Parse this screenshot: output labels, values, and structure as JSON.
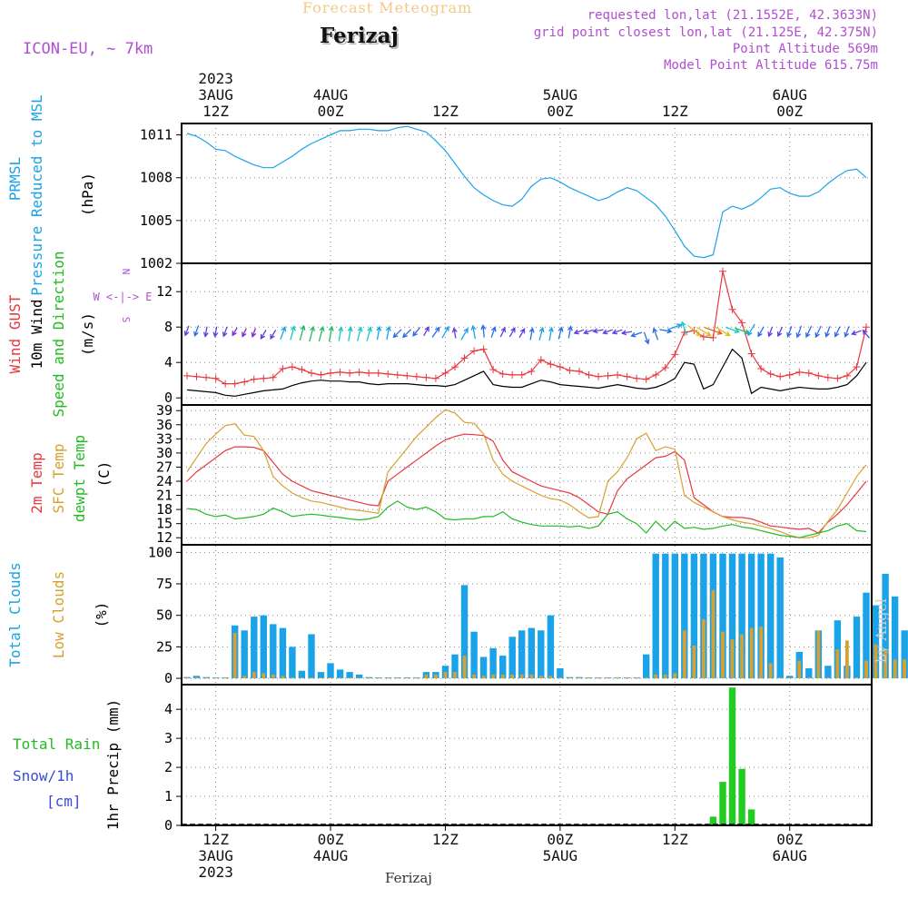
{
  "header": {
    "forecast_title": "Forecast Meteogram",
    "location": "Ferizaj",
    "model": "ICON-EU, ~ 7km",
    "requested": "requested lon,lat (21.1552E, 42.3633N)",
    "grid_point": "grid point closest lon,lat (21.125E, 42.375N)",
    "point_altitude": "Point Altitude 569m",
    "model_altitude": "Model Point Altitude 615.75m",
    "footer_location": "Ferizaj",
    "credit": "by Angel"
  },
  "time_axis": {
    "start_hour": 0,
    "end_hour": 71,
    "top_labels": [
      {
        "h": 3,
        "lines": [
          "2023",
          "3AUG",
          "12Z"
        ]
      },
      {
        "h": 15,
        "lines": [
          "4AUG",
          "00Z"
        ]
      },
      {
        "h": 27,
        "lines": [
          "12Z"
        ]
      },
      {
        "h": 39,
        "lines": [
          "5AUG",
          "00Z"
        ]
      },
      {
        "h": 51,
        "lines": [
          "12Z"
        ]
      },
      {
        "h": 63,
        "lines": [
          "6AUG",
          "00Z"
        ]
      }
    ],
    "bottom_labels": [
      {
        "h": 3,
        "lines": [
          "12Z",
          "3AUG",
          "2023"
        ]
      },
      {
        "h": 15,
        "lines": [
          "00Z",
          "4AUG"
        ]
      },
      {
        "h": 27,
        "lines": [
          "12Z"
        ]
      },
      {
        "h": 39,
        "lines": [
          "00Z",
          "5AUG"
        ]
      },
      {
        "h": 51,
        "lines": [
          "12Z"
        ]
      },
      {
        "h": 63,
        "lines": [
          "00Z",
          "6AUG"
        ]
      }
    ]
  },
  "chart_data": [
    {
      "type": "line",
      "name": "pressure",
      "ylabel_lines": [
        {
          "text": "PRMSL",
          "color": "#1aa3e8"
        },
        {
          "text": "Pressure Reduced to MSL",
          "color": "#1aa3e8"
        }
      ],
      "unit": "(hPa)",
      "ylim": [
        1002,
        1011.8
      ],
      "yticks": [
        1002,
        1005,
        1008,
        1011
      ],
      "series": [
        {
          "color": "#1aa3e8",
          "values": [
            1011.1,
            1010.9,
            1010.5,
            1010.0,
            1009.9,
            1009.5,
            1009.2,
            1008.9,
            1008.7,
            1008.7,
            1009.1,
            1009.5,
            1010.0,
            1010.4,
            1010.7,
            1011.0,
            1011.3,
            1011.3,
            1011.4,
            1011.4,
            1011.3,
            1011.3,
            1011.5,
            1011.6,
            1011.4,
            1011.2,
            1010.6,
            1009.9,
            1009.0,
            1008.1,
            1007.3,
            1006.8,
            1006.4,
            1006.1,
            1006.0,
            1006.5,
            1007.4,
            1007.9,
            1008.0,
            1007.7,
            1007.3,
            1007.0,
            1006.7,
            1006.4,
            1006.6,
            1007.0,
            1007.3,
            1007.1,
            1006.6,
            1006.1,
            1005.3,
            1004.3,
            1003.2,
            1002.5,
            1002.4,
            1002.6,
            1005.6,
            1006.0,
            1005.8,
            1006.1,
            1006.6,
            1007.2,
            1007.3,
            1006.9,
            1006.7,
            1006.7,
            1007.0,
            1007.6,
            1008.1,
            1008.5,
            1008.6,
            1008.0
          ]
        }
      ]
    },
    {
      "type": "line",
      "name": "wind",
      "ylabel_lines": [
        {
          "text": "Wind GUST",
          "color": "#e8373f"
        },
        {
          "text": "10m Wind",
          "color": "#000000"
        },
        {
          "text": "Speed and Direction",
          "color": "#22bb22"
        }
      ],
      "unit": "(m/s)",
      "compass": "W <-|-> E",
      "ylim": [
        -0.8,
        15.2
      ],
      "yticks": [
        0,
        4,
        8,
        12
      ],
      "series": [
        {
          "color": "#000000",
          "values": [
            0.9,
            0.8,
            0.7,
            0.6,
            0.3,
            0.2,
            0.4,
            0.6,
            0.8,
            0.9,
            1.0,
            1.4,
            1.7,
            1.9,
            2.0,
            1.9,
            1.9,
            1.8,
            1.8,
            1.6,
            1.5,
            1.6,
            1.6,
            1.6,
            1.5,
            1.4,
            1.4,
            1.3,
            1.5,
            2.0,
            2.5,
            3.0,
            1.5,
            1.3,
            1.2,
            1.2,
            1.6,
            2.0,
            1.8,
            1.5,
            1.4,
            1.3,
            1.2,
            1.1,
            1.3,
            1.5,
            1.3,
            1.1,
            1.0,
            1.2,
            1.6,
            2.2,
            4.0,
            3.8,
            1.0,
            1.5,
            3.5,
            5.5,
            4.5,
            0.5,
            1.2,
            1.0,
            0.8,
            1.0,
            1.2,
            1.1,
            1.0,
            1.0,
            1.2,
            1.5,
            2.5,
            4.0
          ]
        },
        {
          "color": "#e8373f",
          "marker": "+",
          "values": [
            2.5,
            2.4,
            2.3,
            2.2,
            1.6,
            1.6,
            1.8,
            2.1,
            2.2,
            2.3,
            3.3,
            3.5,
            3.2,
            2.8,
            2.6,
            2.8,
            2.9,
            2.8,
            2.9,
            2.8,
            2.8,
            2.7,
            2.6,
            2.5,
            2.4,
            2.3,
            2.2,
            2.8,
            3.5,
            4.5,
            5.3,
            5.5,
            3.2,
            2.7,
            2.6,
            2.6,
            3.0,
            4.3,
            3.8,
            3.5,
            3.1,
            3.0,
            2.6,
            2.4,
            2.5,
            2.6,
            2.4,
            2.2,
            2.1,
            2.6,
            3.4,
            4.9,
            7.4,
            7.6,
            6.9,
            6.8,
            14.3,
            10.0,
            8.5,
            5.0,
            3.3,
            2.7,
            2.4,
            2.6,
            2.9,
            2.8,
            2.5,
            2.3,
            2.2,
            2.5,
            3.5,
            8.0
          ]
        }
      ],
      "arrows": {
        "level": 7.4,
        "y_offset": [
          -2,
          -2,
          -1,
          -1,
          -1,
          -1,
          0,
          0,
          2,
          2,
          1,
          1,
          1,
          2,
          2,
          2,
          2,
          2,
          2,
          2,
          1,
          1,
          1,
          1,
          -1,
          -1,
          0,
          0,
          1,
          2,
          0,
          -1,
          0,
          0,
          0,
          1,
          2,
          2,
          2,
          1,
          0,
          -1,
          -1,
          -2,
          -1,
          -1,
          0,
          2,
          6,
          2,
          -2,
          -6,
          -4,
          -2,
          -1,
          -2,
          -1,
          -3,
          -2,
          -3,
          -1,
          -1,
          -1,
          -1,
          -1,
          -1,
          -1,
          -1,
          -1,
          -1,
          0,
          2
        ],
        "dir_deg": [
          250,
          250,
          260,
          260,
          250,
          240,
          245,
          250,
          240,
          240,
          70,
          75,
          75,
          75,
          75,
          80,
          80,
          80,
          75,
          75,
          80,
          80,
          225,
          225,
          230,
          60,
          55,
          60,
          100,
          60,
          100,
          95,
          70,
          65,
          60,
          60,
          80,
          75,
          80,
          75,
          80,
          200,
          200,
          190,
          200,
          200,
          190,
          200,
          290,
          110,
          350,
          20,
          110,
          320,
          330,
          340,
          330,
          340,
          340,
          240,
          240,
          250,
          245,
          250,
          250,
          245,
          245,
          250,
          245,
          250,
          200,
          130
        ],
        "speed": [
          1.0,
          1.1,
          1.0,
          1.0,
          1.0,
          0.9,
          0.9,
          0.9,
          1.0,
          1.0,
          1.3,
          1.4,
          1.5,
          1.5,
          1.5,
          1.5,
          1.4,
          1.4,
          1.4,
          1.4,
          1.3,
          1.3,
          1.1,
          1.1,
          1.1,
          1.0,
          1.2,
          1.3,
          1.0,
          1.3,
          1.3,
          1.2,
          1.1,
          1.0,
          1.0,
          1.0,
          1.2,
          1.3,
          1.3,
          1.2,
          1.2,
          1.0,
          1.0,
          1.0,
          1.0,
          1.0,
          1.0,
          1.1,
          1.2,
          1.2,
          1.2,
          1.3,
          1.4,
          1.6,
          1.6,
          1.8,
          1.6,
          1.4,
          1.5,
          1.3,
          1.1,
          1.0,
          1.0,
          1.1,
          1.2,
          1.2,
          1.2,
          1.1,
          1.1,
          1.1,
          1.0,
          1.0
        ]
      }
    },
    {
      "type": "line",
      "name": "temperature",
      "ylabel_lines": [
        {
          "text": "2m Temp",
          "color": "#e8373f"
        },
        {
          "text": "SFC Temp",
          "color": "#d8a030"
        },
        {
          "text": "dewpt Temp",
          "color": "#22bb22"
        }
      ],
      "unit": "(C)",
      "ylim": [
        10.5,
        40.2
      ],
      "yticks": [
        12,
        15,
        18,
        21,
        24,
        27,
        30,
        33,
        36,
        39
      ],
      "series": [
        {
          "color": "#e8373f",
          "values": [
            24.0,
            26.0,
            27.5,
            29.0,
            30.5,
            31.3,
            31.3,
            31.2,
            30.5,
            28.0,
            25.5,
            24.0,
            23.0,
            22.0,
            21.5,
            21.0,
            20.5,
            20.0,
            19.5,
            19.0,
            18.8,
            24.0,
            25.5,
            27.0,
            28.5,
            30.0,
            31.5,
            32.8,
            33.5,
            34.0,
            33.9,
            33.7,
            32.5,
            28.5,
            26.0,
            25.0,
            24.0,
            23.0,
            22.5,
            22.0,
            21.5,
            20.5,
            19.0,
            17.5,
            17.0,
            22.0,
            24.5,
            26.0,
            27.5,
            29.0,
            29.3,
            30.3,
            28.5,
            20.5,
            19.0,
            17.5,
            16.5,
            16.3,
            16.3,
            16.0,
            15.3,
            14.5,
            14.3,
            14.0,
            13.8,
            14.0,
            13.0,
            15.3,
            17.0,
            19.0,
            21.5,
            24.0
          ]
        },
        {
          "color": "#d8a030",
          "values": [
            26.0,
            29.0,
            32.0,
            34.0,
            35.8,
            36.2,
            33.8,
            33.5,
            30.5,
            25.0,
            23.0,
            21.5,
            20.5,
            19.8,
            19.5,
            19.0,
            18.5,
            18.0,
            17.8,
            17.5,
            17.2,
            26.0,
            28.5,
            31.0,
            33.5,
            35.5,
            37.5,
            39.2,
            38.5,
            36.5,
            36.3,
            34.0,
            28.5,
            25.5,
            24.0,
            23.0,
            22.0,
            21.0,
            20.3,
            20.0,
            19.0,
            17.5,
            16.2,
            16.5,
            24.0,
            26.0,
            29.0,
            33.0,
            34.2,
            30.5,
            31.3,
            30.8,
            21.0,
            19.5,
            18.5,
            17.5,
            16.5,
            15.8,
            15.3,
            15.0,
            14.5,
            14.0,
            13.3,
            12.5,
            12.0,
            12.0,
            12.5,
            15.5,
            18.0,
            21.5,
            25.0,
            27.5
          ]
        },
        {
          "color": "#22bb22",
          "values": [
            18.2,
            18.0,
            17.0,
            16.5,
            16.8,
            16.0,
            16.2,
            16.5,
            17.0,
            18.3,
            17.5,
            16.5,
            16.8,
            17.0,
            16.8,
            16.5,
            16.3,
            16.0,
            15.8,
            16.0,
            16.5,
            18.5,
            19.8,
            18.5,
            18.0,
            18.5,
            17.5,
            16.0,
            15.8,
            16.0,
            16.0,
            16.5,
            16.5,
            17.5,
            16.0,
            15.3,
            14.8,
            14.5,
            14.5,
            14.5,
            14.3,
            14.5,
            14.0,
            14.5,
            17.0,
            17.5,
            16.0,
            15.0,
            13.0,
            15.5,
            13.5,
            15.5,
            14.0,
            14.2,
            13.8,
            14.0,
            14.5,
            14.8,
            14.3,
            14.0,
            13.5,
            13.0,
            12.5,
            12.3,
            12.0,
            12.5,
            13.0,
            13.5,
            14.5,
            15.0,
            13.5,
            13.3
          ]
        }
      ]
    },
    {
      "type": "bar",
      "name": "clouds",
      "ylabel_lines": [
        {
          "text": "Total Clouds",
          "color": "#1aa3e8"
        },
        {
          "text": "Low Clouds",
          "color": "#d8a030"
        }
      ],
      "unit": "(%)",
      "ylim": [
        -5,
        106
      ],
      "yticks": [
        0,
        25,
        50,
        75,
        100
      ],
      "series": [
        {
          "color": "#1aa3e8",
          "values": [
            1,
            2,
            1,
            0,
            0,
            42,
            38,
            49,
            50,
            43,
            40,
            25,
            6,
            35,
            5,
            12,
            7,
            5,
            3,
            1,
            0,
            0,
            0,
            0,
            0,
            5,
            5,
            10,
            19,
            74,
            37,
            17,
            24,
            18,
            33,
            38,
            40,
            38,
            50,
            8,
            1,
            1,
            0,
            0,
            0,
            0,
            0,
            0,
            19,
            99,
            99,
            99,
            99,
            99,
            99,
            99,
            99,
            99,
            99,
            99,
            99,
            99,
            96,
            2,
            21,
            8,
            38,
            10,
            46,
            10,
            49,
            68,
            58,
            83,
            65,
            38
          ]
        },
        {
          "color": "#d8a030",
          "values": [
            0,
            1,
            0,
            0,
            0,
            36,
            2,
            5,
            4,
            3,
            2,
            0,
            0,
            0,
            0,
            0,
            0,
            0,
            0,
            0,
            0,
            0,
            0,
            0,
            0,
            3,
            3,
            5,
            5,
            18,
            3,
            2,
            3,
            3,
            3,
            3,
            3,
            2,
            2,
            0,
            0,
            0,
            0,
            0,
            0,
            0,
            0,
            0,
            0,
            3,
            3,
            4,
            38,
            26,
            47,
            70,
            37,
            31,
            35,
            40,
            41,
            12,
            0,
            0,
            14,
            0,
            38,
            0,
            23,
            30,
            0,
            14,
            27,
            23,
            15,
            15
          ]
        }
      ]
    },
    {
      "type": "bar",
      "name": "precipitation",
      "ylabel_lines": [
        {
          "text": "Total  Rain",
          "color": "#22bb22"
        },
        {
          "text": "Snow/1h",
          "color": "#3a4ad8"
        },
        {
          "text": "[cm]",
          "color": "#3a4ad8"
        }
      ],
      "ylabel": "1hr Precip (mm)",
      "ylim": [
        0,
        4.85
      ],
      "yticks": [
        0,
        1,
        2,
        3,
        4
      ],
      "series": [
        {
          "color": "#22cc22",
          "values": [
            0,
            0,
            0,
            0,
            0,
            0,
            0,
            0,
            0,
            0,
            0,
            0,
            0,
            0,
            0,
            0,
            0,
            0,
            0,
            0,
            0,
            0,
            0,
            0,
            0,
            0,
            0,
            0,
            0,
            0,
            0,
            0,
            0,
            0,
            0,
            0,
            0,
            0,
            0,
            0,
            0,
            0,
            0,
            0,
            0,
            0,
            0,
            0,
            0,
            0,
            0,
            0,
            0,
            0,
            0,
            0.3,
            1.5,
            4.75,
            1.95,
            0.55,
            0,
            0,
            0,
            0,
            0,
            0,
            0,
            0,
            0,
            0,
            0,
            0
          ]
        }
      ]
    }
  ]
}
